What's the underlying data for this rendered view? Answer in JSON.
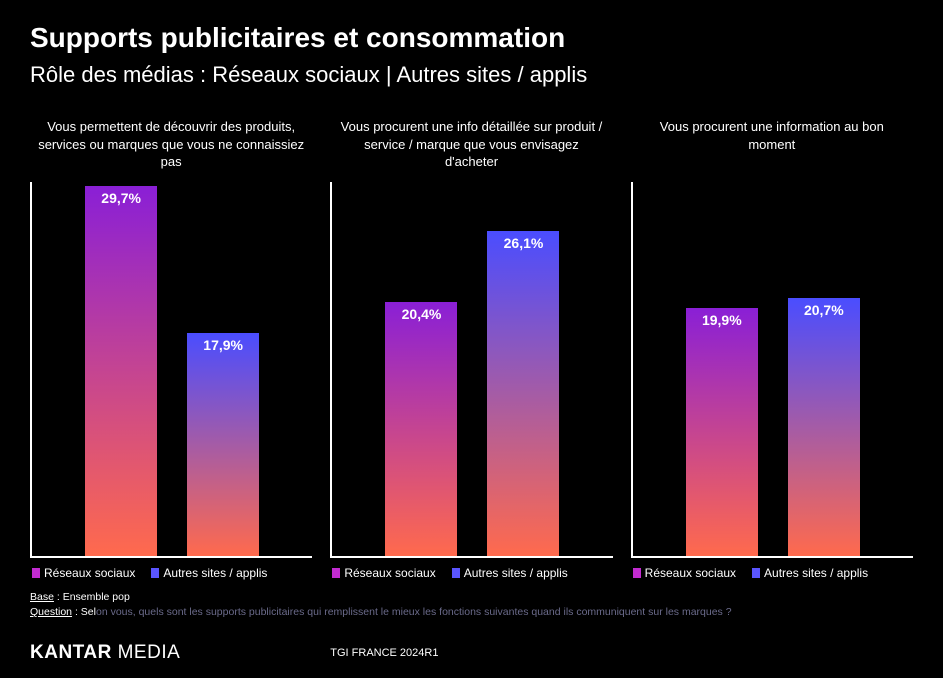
{
  "title": "Supports publicitaires et consommation",
  "subtitle": "Rôle des médias : Réseaux sociaux | Autres sites / applis",
  "axis_color": "#ffffff",
  "background_color": "#000000",
  "y_max": 30,
  "gradients": {
    "series1": {
      "top": "#8a1fd6",
      "bottom": "#ff6a4d"
    },
    "series2": {
      "top": "#4a4dff",
      "bottom": "#ff6a4d"
    }
  },
  "legend": {
    "series1": {
      "label": "Réseaux sociaux",
      "swatch": "#c22bd0"
    },
    "series2": {
      "label": "Autres sites / applis",
      "swatch": "#5a55ff"
    }
  },
  "charts": [
    {
      "title": "Vous permettent de découvrir des produits, services ou marques que vous ne connaissiez pas",
      "bars": [
        {
          "series": "series1",
          "value": 29.7,
          "label": "29,7%"
        },
        {
          "series": "series2",
          "value": 17.9,
          "label": "17,9%"
        }
      ]
    },
    {
      "title": "Vous procurent une info détaillée sur produit / service / marque que vous envisagez d'acheter",
      "bars": [
        {
          "series": "series1",
          "value": 20.4,
          "label": "20,4%"
        },
        {
          "series": "series2",
          "value": 26.1,
          "label": "26,1%"
        }
      ]
    },
    {
      "title": "Vous procurent une information au bon moment",
      "bars": [
        {
          "series": "series1",
          "value": 19.9,
          "label": "19,9%"
        },
        {
          "series": "series2",
          "value": 20.7,
          "label": "20,7%"
        }
      ]
    }
  ],
  "footnotes": {
    "base_label": "Base",
    "base_value": "Ensemble pop",
    "question_label": "Question",
    "question_prefix": "Sel",
    "question_rest": "on vous, quels sont les supports publicitaires qui remplissent le mieux les fonctions suivantes quand ils communiquent sur les marques ?"
  },
  "brand": {
    "bold": "KANTAR",
    "light": " MEDIA"
  },
  "source": "TGI FRANCE 2024R1"
}
